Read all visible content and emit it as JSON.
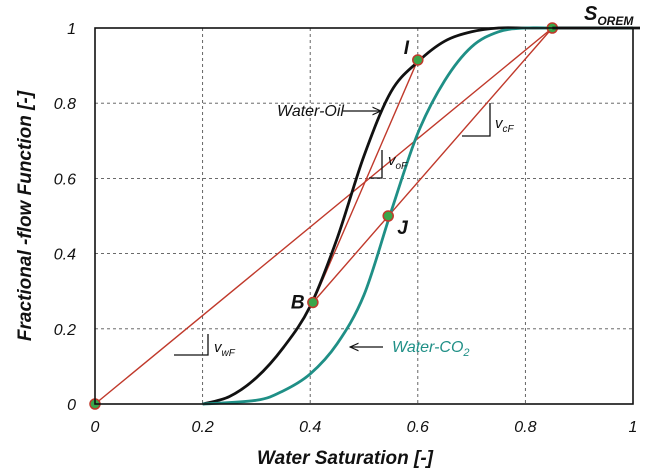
{
  "chart_data": {
    "type": "line",
    "xlabel": "Water Saturation [-]",
    "ylabel": "Fractional -flow Function [-]",
    "xlim": [
      0,
      1
    ],
    "ylim": [
      0,
      1
    ],
    "x_ticks": [
      "0",
      "0.2",
      "0.4",
      "0.6",
      "0.8",
      "1"
    ],
    "y_ticks": [
      "0",
      "0.2",
      "0.4",
      "0.6",
      "0.8",
      "1"
    ],
    "grid": "dashed",
    "colors": {
      "water_oil": "#111111",
      "water_co2": "#1f8f86",
      "tangent": "#c0392b",
      "marker_fill": "#3aa64a"
    },
    "series": [
      {
        "name": "Water-Oil",
        "x": [
          0.2,
          0.25,
          0.3,
          0.35,
          0.4,
          0.45,
          0.5,
          0.55,
          0.6,
          0.65,
          0.7,
          0.75,
          0.8,
          0.85,
          1.0
        ],
        "y": [
          0,
          0.02,
          0.07,
          0.15,
          0.26,
          0.44,
          0.66,
          0.83,
          0.91,
          0.965,
          0.99,
          1.0,
          1.0,
          1.0,
          1.0
        ]
      },
      {
        "name": "Water-CO2",
        "x": [
          0.2,
          0.3,
          0.35,
          0.4,
          0.45,
          0.5,
          0.55,
          0.6,
          0.65,
          0.7,
          0.75,
          0.8,
          0.85,
          1.0
        ],
        "y": [
          0,
          0.01,
          0.035,
          0.08,
          0.16,
          0.29,
          0.51,
          0.72,
          0.86,
          0.95,
          0.99,
          1.0,
          1.0,
          1.0
        ]
      }
    ],
    "lines": [
      {
        "x": [
          0,
          0.85
        ],
        "y": [
          0,
          1
        ]
      },
      {
        "x": [
          0.405,
          0.6
        ],
        "y": [
          0.27,
          0.915
        ]
      },
      {
        "x": [
          0.405,
          0.85
        ],
        "y": [
          0.27,
          1
        ]
      }
    ],
    "points": [
      {
        "label": "I",
        "x": 0.6,
        "y": 0.915
      },
      {
        "label": "J",
        "x": 0.545,
        "y": 0.5
      },
      {
        "label": "B",
        "x": 0.405,
        "y": 0.27
      },
      {
        "label": "",
        "x": 0.85,
        "y": 1.0
      },
      {
        "label": "",
        "x": 0.0,
        "y": 0.0
      }
    ],
    "annotations": {
      "water_oil_label": "Water-Oil",
      "water_co2_label": "Water-CO",
      "water_co2_sub": "2",
      "sorem_main": "S",
      "sorem_sub": "OREM",
      "v_of_main": "v",
      "v_of_sub": "oF",
      "v_cf_main": "v",
      "v_cf_sub": "cF",
      "v_wf_main": "v",
      "v_wf_sub": "wF"
    }
  }
}
